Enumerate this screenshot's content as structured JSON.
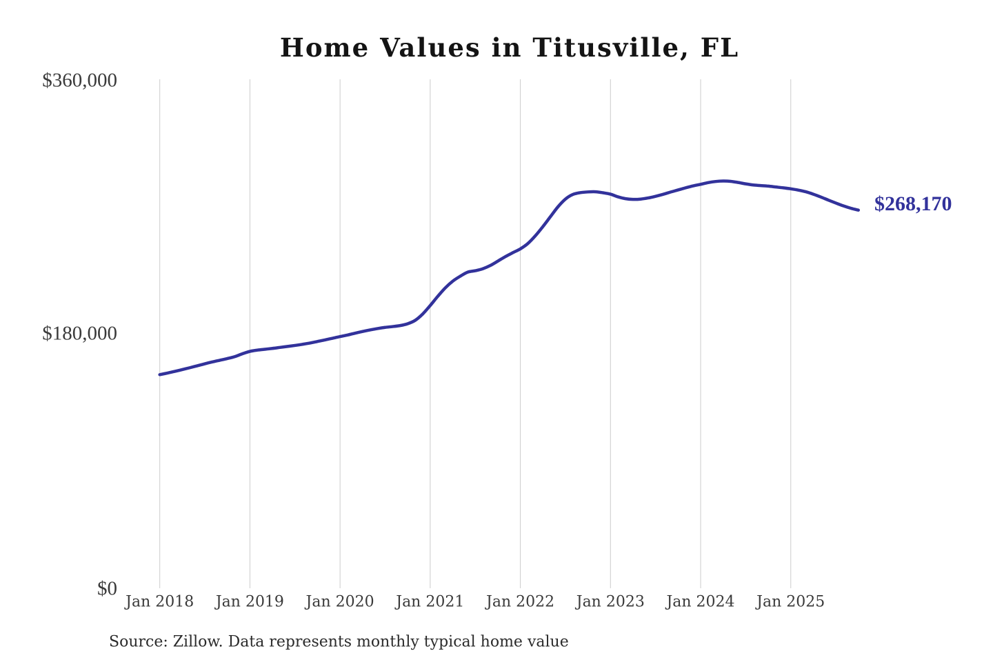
{
  "title": "Home Values in Titusville, FL",
  "end_label": "$268,170",
  "source_note": "Source: Zillow. Data represents monthly typical home value",
  "colors": {
    "line": "#32329B",
    "end_label": "#32329B",
    "gridline": "#CCCCCC",
    "tick_text": "#3A3A3A",
    "title_text": "#141414",
    "background": "#FFFFFF"
  },
  "chart_data": {
    "type": "line",
    "title": "Home Values in Titusville, FL",
    "xlabel": "",
    "ylabel": "",
    "ylim": [
      0,
      360000
    ],
    "y_tick_labels": [
      "$0",
      "$180,000",
      "$360,000"
    ],
    "y_tick_values": [
      0,
      180000,
      360000
    ],
    "x_tick_labels": [
      "Jan 2018",
      "Jan 2019",
      "Jan 2020",
      "Jan 2021",
      "Jan 2022",
      "Jan 2023",
      "Jan 2024",
      "Jan 2025"
    ],
    "x_start": "Jan 2018",
    "x_end": "Oct 2025",
    "frequency": "monthly",
    "grid": "vertical-only",
    "legend": "none",
    "final_value": 268170,
    "series": [
      {
        "name": "Typical home value",
        "values": [
          151500,
          152600,
          153800,
          155100,
          156400,
          157800,
          159200,
          160500,
          161700,
          162900,
          164300,
          166300,
          168000,
          168900,
          169500,
          170100,
          170800,
          171500,
          172200,
          173000,
          173900,
          175000,
          176100,
          177300,
          178500,
          179600,
          180900,
          182100,
          183200,
          184200,
          185000,
          185600,
          186300,
          187600,
          190000,
          194500,
          200500,
          207000,
          213000,
          217800,
          221300,
          224200,
          225200,
          226600,
          228900,
          232000,
          235200,
          238000,
          240700,
          244500,
          250000,
          256500,
          263500,
          270500,
          276000,
          279300,
          280600,
          281100,
          281200,
          280500,
          279500,
          277600,
          276300,
          275800,
          276000,
          276800,
          278000,
          279400,
          281000,
          282500,
          284000,
          285400,
          286500,
          287700,
          288500,
          288800,
          288600,
          287800,
          286800,
          286000,
          285600,
          285200,
          284600,
          284000,
          283300,
          282400,
          281200,
          279500,
          277500,
          275300,
          273200,
          271200,
          269500,
          268170
        ]
      }
    ]
  }
}
